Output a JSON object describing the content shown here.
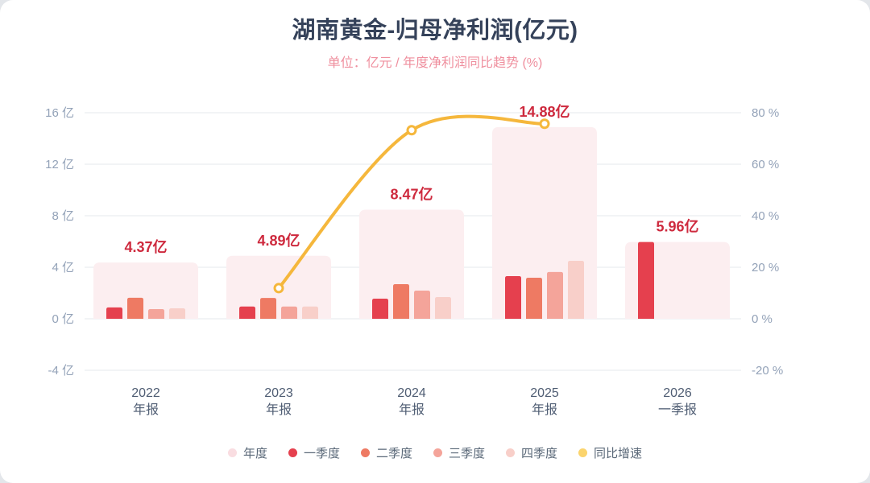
{
  "header": {
    "title": "湖南黄金-归母净利润(亿元)",
    "subtitle": "单位：亿元 / 年度净利润同比趋势 (%)"
  },
  "chart_data": {
    "type": "bar",
    "subtype": "grouped quarterly bars with annual background bar and YoY growth line",
    "categories": [
      {
        "year": "2022",
        "period": "年报"
      },
      {
        "year": "2023",
        "period": "年报"
      },
      {
        "year": "2024",
        "period": "年报"
      },
      {
        "year": "2025",
        "period": "年报"
      },
      {
        "year": "2026",
        "period": "一季报"
      }
    ],
    "value_labels": [
      "4.37亿",
      "4.89亿",
      "8.47亿",
      "14.88亿",
      "5.96亿"
    ],
    "annual_values": [
      4.37,
      4.89,
      8.47,
      14.88,
      5.96
    ],
    "series": [
      {
        "name": "年度",
        "type": "bar_background",
        "color": "#fceef0",
        "values": [
          4.37,
          4.89,
          8.47,
          14.88,
          5.96
        ]
      },
      {
        "name": "一季度",
        "type": "bar",
        "color": "#e5404e",
        "values": [
          0.88,
          0.95,
          1.56,
          3.31,
          5.96
        ]
      },
      {
        "name": "二季度",
        "type": "bar",
        "color": "#ee7a63",
        "values": [
          1.63,
          1.62,
          2.69,
          3.19,
          null
        ]
      },
      {
        "name": "三季度",
        "type": "bar",
        "color": "#f4a49a",
        "values": [
          0.75,
          0.95,
          2.19,
          3.63,
          null
        ]
      },
      {
        "name": "四季度",
        "type": "bar",
        "color": "#f8cfc9",
        "values": [
          0.81,
          0.95,
          1.69,
          4.5,
          null
        ]
      },
      {
        "name": "同比增速",
        "type": "line",
        "unit": "%",
        "color": "#f5b73c",
        "values": [
          null,
          11.9,
          73.2,
          75.7,
          null
        ]
      }
    ],
    "left_axis": {
      "unit": "亿",
      "min": -4,
      "max": 16,
      "tick_values": [
        16,
        12,
        8,
        4,
        0,
        -4
      ],
      "tick_labels": [
        "16 亿",
        "12 亿",
        "8 亿",
        "4 亿",
        "0 亿",
        "-4 亿"
      ]
    },
    "right_axis": {
      "unit": "%",
      "min": -20,
      "max": 80,
      "tick_values": [
        80,
        60,
        40,
        20,
        0,
        -20
      ],
      "tick_labels": [
        "80 %",
        "60 %",
        "40 %",
        "20 %",
        "0 %",
        "-20 %"
      ]
    },
    "legend": [
      {
        "label": "年度",
        "color": "#f9dde1"
      },
      {
        "label": "一季度",
        "color": "#e5404e"
      },
      {
        "label": "二季度",
        "color": "#ee7a63"
      },
      {
        "label": "三季度",
        "color": "#f4a49a"
      },
      {
        "label": "四季度",
        "color": "#f8cfc9"
      },
      {
        "label": "同比增速",
        "color": "#fbd46d"
      }
    ],
    "colors": {
      "value_label": "#ce2a3e",
      "axis_text": "#93a2b8",
      "category_text": "#4f5d73",
      "gridline": "#edf0f4",
      "line_marker_fill": "#ffffff"
    },
    "grid": true,
    "legend_position": "bottom"
  }
}
